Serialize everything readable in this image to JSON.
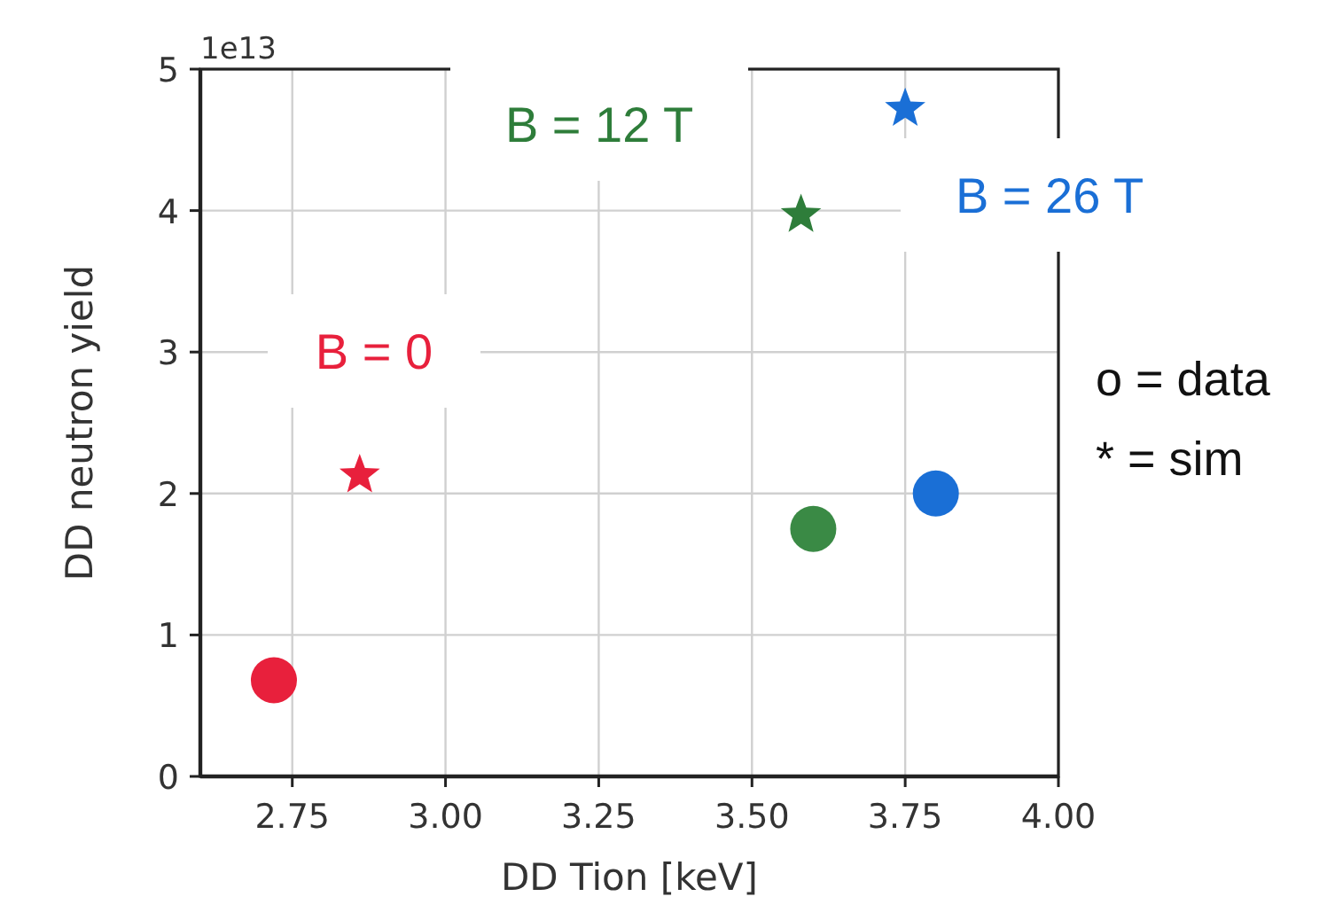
{
  "chart_data": {
    "type": "scatter",
    "xlabel": "DD Tion  [keV]",
    "ylabel": "DD neutron yield",
    "xlim": [
      2.6,
      4.0
    ],
    "ylim": [
      0,
      5
    ],
    "xticks": [
      {
        "value": 2.75,
        "label": "2.75"
      },
      {
        "value": 3.0,
        "label": "3.00"
      },
      {
        "value": 3.25,
        "label": "3.25"
      },
      {
        "value": 3.5,
        "label": "3.50"
      },
      {
        "value": 3.75,
        "label": "3.75"
      },
      {
        "value": 4.0,
        "label": "4.00"
      }
    ],
    "yticks": [
      0,
      1,
      2,
      3,
      4,
      5
    ],
    "grid": true,
    "series": [
      {
        "color": "#e8203c",
        "marker": "circle",
        "x": [
          2.72
        ],
        "values": [
          0.68
        ]
      },
      {
        "name": "B = 0",
        "color": "#e8203c",
        "marker": "star",
        "x": [
          2.86
        ],
        "values": [
          2.13
        ]
      },
      {
        "color": "#3a8a45",
        "marker": "circle",
        "x": [
          3.6
        ],
        "values": [
          1.75
        ]
      },
      {
        "name": "B = 12 T",
        "color": "#2e7d3a",
        "marker": "star",
        "x": [
          3.58
        ],
        "values": [
          3.97
        ]
      },
      {
        "color": "#1a6fd6",
        "marker": "circle",
        "x": [
          3.8
        ],
        "values": [
          2.0
        ]
      },
      {
        "name": "B = 26 T",
        "color": "#1a6fd6",
        "marker": "star",
        "x": [
          3.75
        ],
        "values": [
          4.72
        ]
      }
    ],
    "annotations": [
      "1e13",
      "o = data",
      "* = sim"
    ]
  }
}
